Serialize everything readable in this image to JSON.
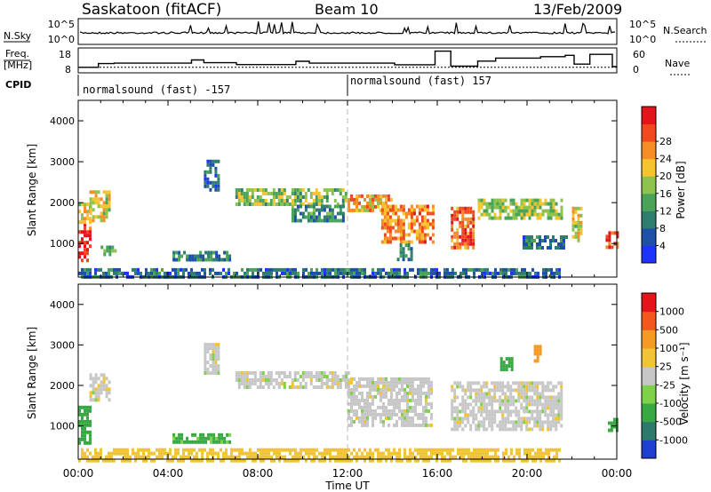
{
  "header": {
    "station": "Saskatoon (fitACF)",
    "beam": "Beam 10",
    "date": "13/Feb/2009"
  },
  "left_labels": {
    "nsky": "N.Sky",
    "freq_line1": "Freq.",
    "freq_line2": "[MHz]",
    "cpid": "CPID"
  },
  "right_labels": {
    "nsearch": "N.Search",
    "nave": "Nave"
  },
  "nsky_panel": {
    "ticks_left": [
      "10^5",
      "10^0"
    ],
    "ticks_right": [
      "10^5",
      "10^0"
    ]
  },
  "freq_panel": {
    "ticks_left": [
      "18",
      "8"
    ],
    "ticks_right": [
      "60",
      "0"
    ],
    "freq_range_mhz": [
      8,
      18
    ],
    "nave_range": [
      0,
      60
    ],
    "freq_steps": [
      {
        "t": 0.0,
        "v": 10.0
      },
      {
        "t": 0.9,
        "v": 11.6
      },
      {
        "t": 1.6,
        "v": 11.8
      },
      {
        "t": 5.05,
        "v": 13.2
      },
      {
        "t": 5.6,
        "v": 12.0
      },
      {
        "t": 7.05,
        "v": 11.2
      },
      {
        "t": 9.7,
        "v": 12.6
      },
      {
        "t": 10.3,
        "v": 11.8
      },
      {
        "t": 14.1,
        "v": 11.1
      },
      {
        "t": 15.9,
        "v": 17.0
      },
      {
        "t": 16.6,
        "v": 10.5
      },
      {
        "t": 17.8,
        "v": 12.7
      },
      {
        "t": 18.6,
        "v": 14.0
      },
      {
        "t": 20.6,
        "v": 14.6
      },
      {
        "t": 21.7,
        "v": 15.2
      },
      {
        "t": 22.1,
        "v": 11.4
      },
      {
        "t": 22.8,
        "v": 15.6
      },
      {
        "t": 23.8,
        "v": 10.3
      }
    ],
    "nave_level": 12
  },
  "cpid_labels": {
    "left": "normalsound (fast) -157",
    "right": "normalsound (fast) 157",
    "divider_hour": 12
  },
  "power_panel": {
    "ylabel": "Slant Range [km]",
    "yticks": [
      "1000",
      "2000",
      "3000",
      "4000"
    ],
    "colorbar_label": "Power [dB]",
    "colorbar_ticks": [
      "4",
      "8",
      "12",
      "16",
      "20",
      "24",
      "28"
    ],
    "colorbar_colors": [
      "#1f33ff",
      "#1f50a8",
      "#2e7e6e",
      "#49a45a",
      "#8dc34d",
      "#f5c42e",
      "#f58c26",
      "#f24a1e",
      "#e4141c"
    ]
  },
  "velocity_panel": {
    "ylabel": "Slant Range [km]",
    "yticks": [
      "1000",
      "2000",
      "3000",
      "4000"
    ],
    "colorbar_label": "Velocity [m s⁻¹]",
    "colorbar_ticks": [
      "1000",
      "500",
      "100",
      "25",
      "-25",
      "-100",
      "-500",
      "-1000"
    ],
    "colorbar_colors": [
      "#1f3fd1",
      "#2d7a6a",
      "#38a845",
      "#7fd04a",
      "#c7c7c7",
      "#f0c436",
      "#f59a24",
      "#f2571d",
      "#e4141c"
    ]
  },
  "xaxis": {
    "label": "Time UT",
    "ticks": [
      "00:00",
      "04:00",
      "08:00",
      "12:00",
      "16:00",
      "20:00",
      "00:00"
    ]
  },
  "chart_data": {
    "type": "heatmap",
    "title": "Saskatoon (fitACF)",
    "subtitle": "Beam 10 — 13/Feb/2009",
    "xlabel": "Time UT",
    "ylabel": "Slant Range [km]",
    "x_range_hours": [
      0,
      24
    ],
    "y_range_km": [
      180,
      4500
    ],
    "panels": [
      {
        "name": "Power",
        "unit": "dB",
        "color_range": [
          0,
          30
        ],
        "echo_bands": [
          {
            "t0": 0.0,
            "t1": 0.55,
            "r0": 550,
            "r1": 1500,
            "value": 27
          },
          {
            "t0": 0.0,
            "t1": 0.5,
            "r0": 1500,
            "r1": 2000,
            "value": 16
          },
          {
            "t0": 0.5,
            "t1": 1.4,
            "r0": 1600,
            "r1": 2300,
            "value": 18
          },
          {
            "t0": 1.0,
            "t1": 1.6,
            "r0": 700,
            "r1": 950,
            "value": 10
          },
          {
            "t0": 5.6,
            "t1": 6.3,
            "r0": 2300,
            "r1": 3050,
            "value": 6
          },
          {
            "t0": 4.2,
            "t1": 6.8,
            "r0": 620,
            "r1": 820,
            "value": 8
          },
          {
            "t0": 7.0,
            "t1": 12.0,
            "r0": 1950,
            "r1": 2350,
            "value": 14
          },
          {
            "t0": 9.5,
            "t1": 11.8,
            "r0": 1600,
            "r1": 1950,
            "value": 9
          },
          {
            "t0": 12.0,
            "t1": 14.0,
            "r0": 1800,
            "r1": 2200,
            "value": 20
          },
          {
            "t0": 13.5,
            "t1": 15.8,
            "r0": 1050,
            "r1": 1950,
            "value": 22
          },
          {
            "t0": 14.2,
            "t1": 14.8,
            "r0": 600,
            "r1": 1000,
            "value": 9
          },
          {
            "t0": 16.6,
            "t1": 17.6,
            "r0": 900,
            "r1": 1900,
            "value": 24
          },
          {
            "t0": 17.8,
            "t1": 21.5,
            "r0": 1600,
            "r1": 2100,
            "value": 15
          },
          {
            "t0": 19.8,
            "t1": 21.8,
            "r0": 900,
            "r1": 1200,
            "value": 8
          },
          {
            "t0": 22.0,
            "t1": 22.4,
            "r0": 1100,
            "r1": 1900,
            "value": 18
          },
          {
            "t0": 23.5,
            "t1": 24.0,
            "r0": 900,
            "r1": 1300,
            "value": 26
          },
          {
            "t0": 0.0,
            "t1": 21.5,
            "r0": 180,
            "r1": 400,
            "value": 7
          }
        ]
      },
      {
        "name": "Velocity",
        "unit": "m s-1",
        "color_range": [
          -1000,
          1000
        ],
        "echo_bands": [
          {
            "t0": 0.0,
            "t1": 0.55,
            "r0": 550,
            "r1": 1500,
            "value": 150
          },
          {
            "t0": 0.5,
            "t1": 1.4,
            "r0": 1600,
            "r1": 2300,
            "value": 0
          },
          {
            "t0": 4.2,
            "t1": 6.8,
            "r0": 620,
            "r1": 820,
            "value": 120
          },
          {
            "t0": 5.6,
            "t1": 6.3,
            "r0": 2300,
            "r1": 3050,
            "value": 0
          },
          {
            "t0": 7.0,
            "t1": 12.0,
            "r0": 1950,
            "r1": 2350,
            "value": 0
          },
          {
            "t0": 12.0,
            "t1": 15.8,
            "r0": 1050,
            "r1": 2200,
            "value": 0
          },
          {
            "t0": 16.6,
            "t1": 21.5,
            "r0": 900,
            "r1": 2100,
            "value": 0
          },
          {
            "t0": 18.8,
            "t1": 19.3,
            "r0": 2400,
            "r1": 2700,
            "value": 300
          },
          {
            "t0": 20.3,
            "t1": 20.6,
            "r0": 2600,
            "r1": 3000,
            "value": -400
          },
          {
            "t0": 23.6,
            "t1": 24.0,
            "r0": 900,
            "r1": 1200,
            "value": 150
          },
          {
            "t0": 0.0,
            "t1": 21.5,
            "r0": 180,
            "r1": 450,
            "value": -70
          }
        ]
      }
    ],
    "grid": false
  }
}
